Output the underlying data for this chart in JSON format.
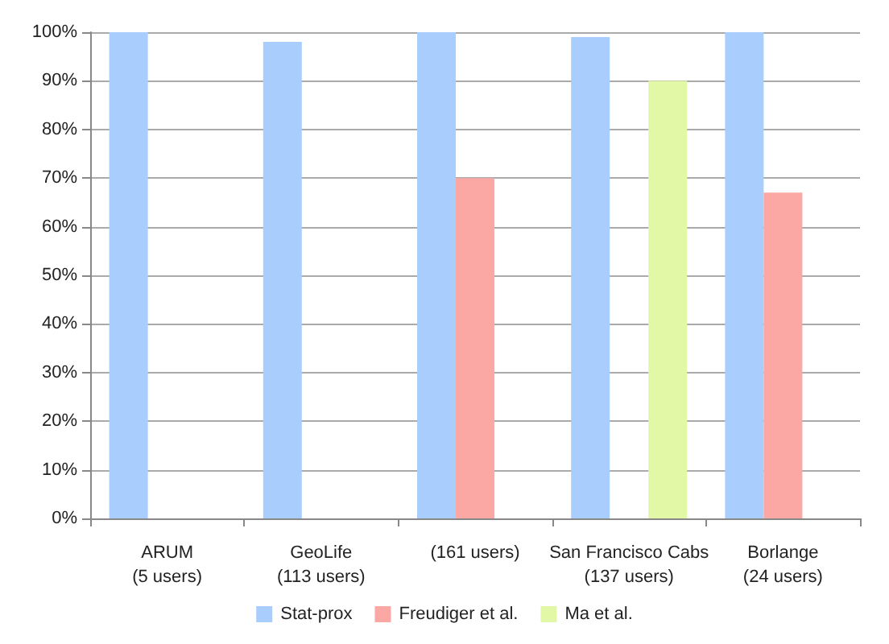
{
  "chart_data": {
    "type": "bar",
    "categories": [
      "ARUM\n(5 users)",
      "GeoLife\n(113 users)",
      "(161 users)",
      "San Francisco Cabs\n(137 users)",
      "Borlange\n(24 users)"
    ],
    "series": [
      {
        "name": "Stat-prox",
        "color": "#a9cdfd",
        "values": [
          100,
          98,
          100,
          99,
          100
        ]
      },
      {
        "name": "Freudiger et al.",
        "color": "#fba8a5",
        "values": [
          null,
          null,
          70,
          null,
          67
        ]
      },
      {
        "name": "Ma et al.",
        "color": "#e2f8a6",
        "values": [
          null,
          null,
          null,
          90,
          null
        ]
      }
    ],
    "ylim": [
      0,
      100
    ],
    "yticks": [
      {
        "value": 0,
        "label": "0%"
      },
      {
        "value": 10,
        "label": "10%"
      },
      {
        "value": 20,
        "label": "20%"
      },
      {
        "value": 30,
        "label": "30%"
      },
      {
        "value": 40,
        "label": "40%"
      },
      {
        "value": 50,
        "label": "50%"
      },
      {
        "value": 60,
        "label": "60%"
      },
      {
        "value": 70,
        "label": "70%"
      },
      {
        "value": 80,
        "label": "80%"
      },
      {
        "value": 90,
        "label": "90%"
      },
      {
        "value": 100,
        "label": "100%"
      }
    ],
    "grid": "y",
    "legend": "bottom"
  }
}
